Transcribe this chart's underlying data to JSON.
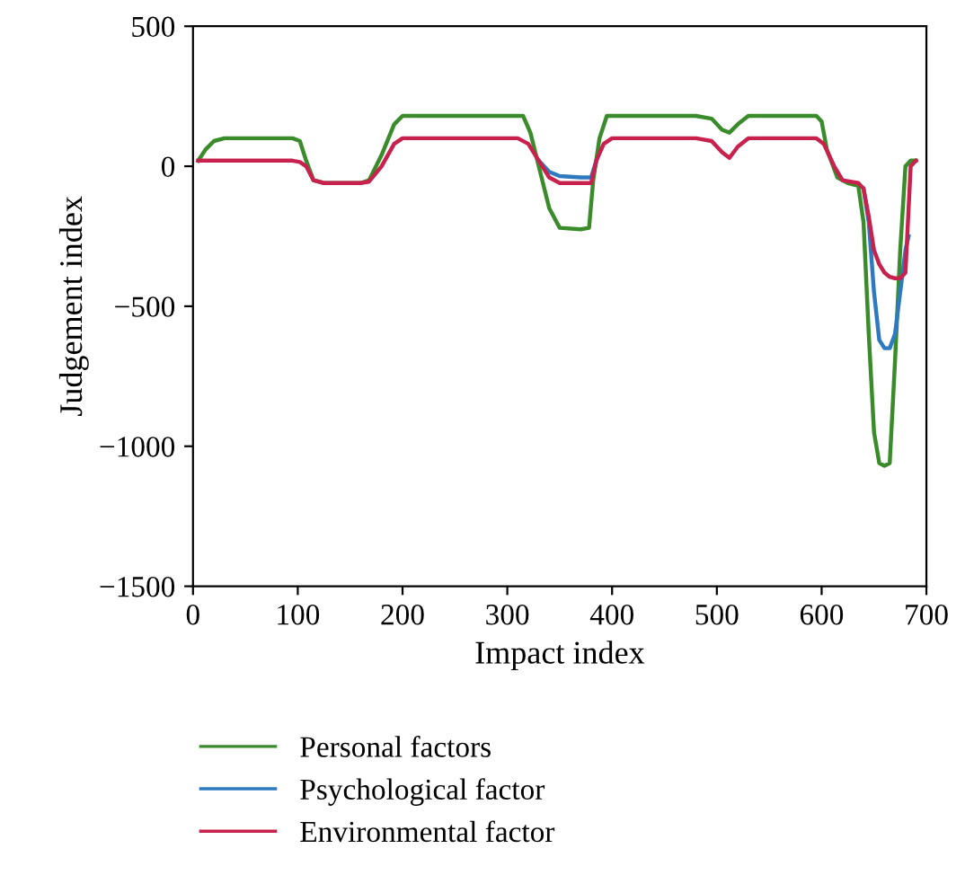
{
  "chart_data": {
    "type": "line",
    "xlabel": "Impact index",
    "ylabel": "Judgement index",
    "xlim": [
      0,
      700
    ],
    "ylim": [
      -1500,
      500
    ],
    "xticks": [
      0,
      100,
      200,
      300,
      400,
      500,
      600,
      700
    ],
    "yticks": [
      -1500,
      -1000,
      -500,
      0,
      500
    ],
    "grid": false,
    "legend": "bottom",
    "line_style": "solid",
    "marker": "none",
    "series": [
      {
        "name": "Personal factors",
        "color": "#3a8c2a",
        "x": [
          5,
          12,
          20,
          30,
          60,
          95,
          102,
          108,
          115,
          125,
          160,
          168,
          180,
          192,
          200,
          230,
          300,
          315,
          322,
          330,
          340,
          350,
          370,
          378,
          382,
          388,
          395,
          420,
          480,
          495,
          505,
          512,
          520,
          530,
          560,
          595,
          600,
          605,
          615,
          625,
          635,
          640,
          645,
          650,
          655,
          660,
          665,
          670,
          675,
          680,
          685,
          690
        ],
        "values": [
          20,
          60,
          90,
          100,
          100,
          100,
          90,
          20,
          -50,
          -60,
          -60,
          -50,
          40,
          150,
          180,
          180,
          180,
          180,
          120,
          0,
          -150,
          -220,
          -225,
          -220,
          -50,
          100,
          180,
          180,
          180,
          170,
          130,
          120,
          150,
          180,
          180,
          180,
          160,
          60,
          -40,
          -60,
          -70,
          -200,
          -600,
          -950,
          -1060,
          -1070,
          -1060,
          -700,
          -300,
          0,
          20,
          20
        ]
      },
      {
        "name": "Psychological factor",
        "color": "#2d7ac0",
        "x": [
          330,
          340,
          350,
          370,
          380,
          385
        ],
        "values": [
          20,
          -20,
          -35,
          -40,
          -40,
          20
        ]
      },
      {
        "color": "#2d7ac0",
        "x": [
          640,
          645,
          650,
          655,
          660,
          665,
          670,
          675,
          680,
          683
        ],
        "values": [
          -80,
          -200,
          -450,
          -620,
          -650,
          -650,
          -600,
          -450,
          -300,
          -250
        ]
      },
      {
        "name": "Environmental factor",
        "color": "#c8214e",
        "x": [
          5,
          30,
          60,
          95,
          102,
          108,
          115,
          125,
          160,
          168,
          180,
          192,
          200,
          230,
          300,
          310,
          320,
          330,
          340,
          350,
          370,
          380,
          385,
          392,
          400,
          420,
          480,
          495,
          505,
          512,
          520,
          530,
          560,
          595,
          602,
          612,
          620,
          635,
          640,
          645,
          650,
          655,
          660,
          665,
          670,
          675,
          680,
          685,
          690
        ],
        "values": [
          20,
          20,
          20,
          20,
          15,
          0,
          -50,
          -60,
          -60,
          -55,
          0,
          80,
          100,
          100,
          100,
          100,
          80,
          20,
          -40,
          -60,
          -60,
          -60,
          20,
          80,
          100,
          100,
          100,
          90,
          50,
          30,
          70,
          100,
          100,
          100,
          80,
          0,
          -50,
          -60,
          -80,
          -180,
          -300,
          -350,
          -380,
          -395,
          -400,
          -400,
          -380,
          0,
          20
        ]
      }
    ]
  }
}
